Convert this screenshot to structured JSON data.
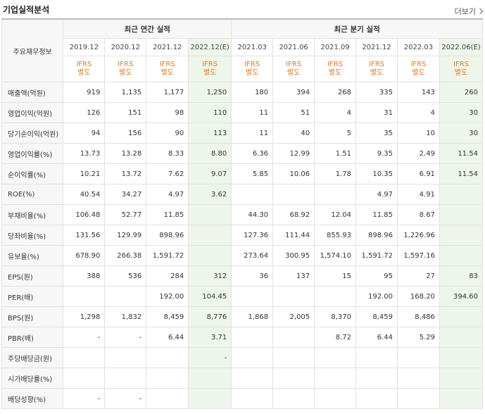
{
  "header": {
    "title": "기업실적분석",
    "more_label": "더보기"
  },
  "table": {
    "row_header_label": "주요재무정보",
    "annual_group_label": "최근 연간 실적",
    "quarter_group_label": "최근 분기 실적",
    "annual_periods": [
      "2019.12",
      "2020.12",
      "2021.12",
      "2022.12(E)"
    ],
    "quarter_periods": [
      "2021.03",
      "2021.06",
      "2021.09",
      "2021.12",
      "2022.03",
      "2022.06(E)"
    ],
    "ifrs_line1": "IFRS",
    "ifrs_line2": "별도",
    "rows": [
      {
        "label": "매출액(억원)",
        "values": [
          "919",
          "1,135",
          "1,177",
          "1,250",
          "180",
          "394",
          "268",
          "335",
          "143",
          "260"
        ]
      },
      {
        "label": "영업이익(억원)",
        "values": [
          "126",
          "151",
          "98",
          "110",
          "11",
          "51",
          "4",
          "31",
          "4",
          "30"
        ]
      },
      {
        "label": "당기순이익(억원)",
        "values": [
          "94",
          "156",
          "90",
          "113",
          "11",
          "40",
          "5",
          "35",
          "10",
          "30"
        ]
      },
      {
        "label": "영업이익률(%)",
        "values": [
          "13.73",
          "13.28",
          "8.33",
          "8.80",
          "6.36",
          "12.99",
          "1.51",
          "9.35",
          "2.49",
          "11.54"
        ]
      },
      {
        "label": "순이익률(%)",
        "values": [
          "10.21",
          "13.72",
          "7.62",
          "9.07",
          "5.85",
          "10.06",
          "1.78",
          "10.35",
          "6.91",
          "11.54"
        ]
      },
      {
        "label": "ROE(%)",
        "values": [
          "40.54",
          "34.27",
          "4.97",
          "3.62",
          "",
          "",
          "",
          "4.97",
          "4.91",
          ""
        ]
      },
      {
        "label": "부채비율(%)",
        "values": [
          "106.48",
          "52.77",
          "11.85",
          "",
          "44.30",
          "68.92",
          "12.04",
          "11.85",
          "8.67",
          ""
        ]
      },
      {
        "label": "당좌비율(%)",
        "values": [
          "131.56",
          "129.99",
          "898.96",
          "",
          "127.36",
          "111.44",
          "855.93",
          "898.96",
          "1,226.96",
          ""
        ]
      },
      {
        "label": "유보율(%)",
        "values": [
          "678.90",
          "266.38",
          "1,591.72",
          "",
          "273.64",
          "300.95",
          "1,574.10",
          "1,591.72",
          "1,597.16",
          ""
        ]
      },
      {
        "label": "EPS(원)",
        "values": [
          "388",
          "536",
          "284",
          "312",
          "36",
          "137",
          "15",
          "95",
          "27",
          "83"
        ]
      },
      {
        "label": "PER(배)",
        "values": [
          "",
          "",
          "192.00",
          "104.45",
          "",
          "",
          "",
          "192.00",
          "168.20",
          "394.60"
        ]
      },
      {
        "label": "BPS(원)",
        "values": [
          "1,298",
          "1,832",
          "8,459",
          "8,776",
          "1,868",
          "2,005",
          "8,370",
          "8,459",
          "8,486",
          ""
        ]
      },
      {
        "label": "PBR(배)",
        "values": [
          "-",
          "-",
          "6.44",
          "3.71",
          "",
          "",
          "8.72",
          "6.44",
          "5.29",
          ""
        ]
      },
      {
        "label": "주당배당금(원)",
        "values": [
          "",
          "",
          "",
          "-",
          "",
          "",
          "",
          "",
          "",
          ""
        ]
      },
      {
        "label": "시가배당률(%)",
        "values": [
          "",
          "",
          "",
          "",
          "",
          "",
          "",
          "",
          "",
          ""
        ]
      },
      {
        "label": "배당성향(%)",
        "values": [
          "-",
          "-",
          "",
          "",
          "",
          "",
          "",
          "",
          "",
          ""
        ]
      }
    ]
  }
}
